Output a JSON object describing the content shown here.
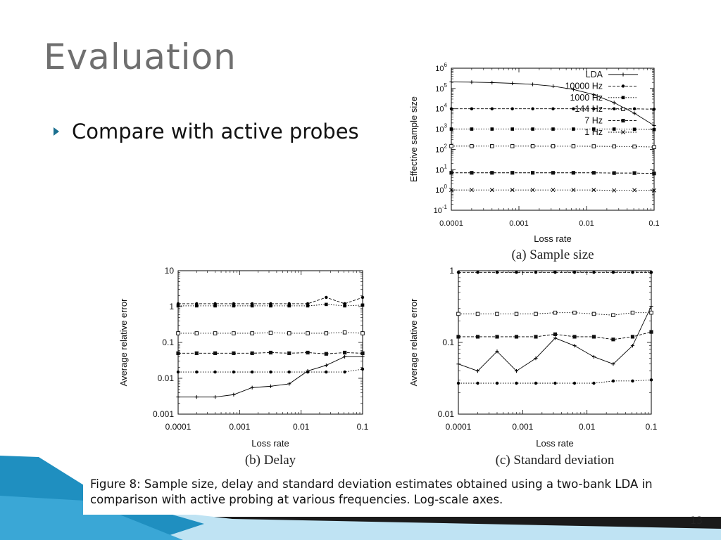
{
  "slide": {
    "title": "Evaluation",
    "bullet": "Compare with active probes",
    "caption": "Figure 8: Sample size, delay and standard deviation estimates obtained using a two-bank LDA in comparison with active probing at various frequencies. Log-scale axes.",
    "page_number": "13"
  },
  "colors": {
    "title": "#6f6f6f",
    "bullet_marker": "#1b6f8f",
    "decor_blue": "#1f8fc0",
    "decor_light": "#bfe3f3"
  },
  "chart_data": [
    {
      "id": "a",
      "type": "line",
      "subtitle": "(a) Sample size",
      "xlabel": "Loss rate",
      "ylabel": "Effective sample size",
      "xscale": "log",
      "yscale": "log",
      "xlim": [
        0.0001,
        0.1
      ],
      "ylim": [
        0.1,
        1000000
      ],
      "xticks": [
        "0.0001",
        "0.001",
        "0.01",
        "0.1"
      ],
      "yticks": [
        {
          "base": "10",
          "exp": "6"
        },
        {
          "base": "10",
          "exp": "5"
        },
        {
          "base": "10",
          "exp": "4"
        },
        {
          "base": "10",
          "exp": "3"
        },
        {
          "base": "10",
          "exp": "2"
        },
        {
          "base": "10",
          "exp": "1"
        },
        {
          "base": "10",
          "exp": "0"
        },
        {
          "base": "10",
          "exp": "-1"
        }
      ],
      "legend_position": "top-right",
      "x": [
        0.0001,
        0.0002,
        0.0004,
        0.0008,
        0.0016,
        0.0032,
        0.0064,
        0.0128,
        0.0256,
        0.0512,
        0.1
      ],
      "series": [
        {
          "name": "LDA",
          "marker": "plus",
          "dash": "solid",
          "values": [
            210000,
            205000,
            195000,
            180000,
            160000,
            130000,
            90000,
            50000,
            20000,
            6000,
            1500
          ]
        },
        {
          "name": "10000 Hz",
          "marker": "dot",
          "dash": "dashed",
          "values": [
            10000,
            10000,
            10000,
            10000,
            10000,
            10000,
            10000,
            10000,
            10000,
            10000,
            9500
          ]
        },
        {
          "name": "1000 Hz",
          "marker": "square",
          "dash": "dotted",
          "values": [
            1000,
            1000,
            1000,
            1000,
            1000,
            1000,
            1000,
            1000,
            1000,
            980,
            950
          ]
        },
        {
          "name": "144 Hz",
          "marker": "open-square",
          "dash": "dotted",
          "values": [
            144,
            144,
            144,
            144,
            144,
            143,
            143,
            142,
            140,
            138,
            130
          ]
        },
        {
          "name": "7 Hz",
          "marker": "filled-square",
          "dash": "dashed",
          "values": [
            7,
            7,
            7,
            7,
            7,
            7,
            7,
            7,
            6.8,
            6.8,
            6.5
          ]
        },
        {
          "name": "1 Hz",
          "marker": "cross",
          "dash": "dotted",
          "values": [
            1,
            1,
            1,
            1,
            1,
            1,
            1,
            1,
            0.95,
            0.98,
            0.95
          ]
        }
      ]
    },
    {
      "id": "b",
      "type": "line",
      "subtitle": "(b) Delay",
      "xlabel": "Loss rate",
      "ylabel": "Average relative error",
      "xscale": "log",
      "yscale": "log",
      "xlim": [
        0.0001,
        0.1
      ],
      "ylim": [
        0.001,
        10
      ],
      "xticks": [
        "0.0001",
        "0.001",
        "0.01",
        "0.1"
      ],
      "yticks": [
        "10",
        "1",
        "0.1",
        "0.01",
        "0.001"
      ],
      "x": [
        0.0001,
        0.0002,
        0.0004,
        0.0008,
        0.0016,
        0.0032,
        0.0064,
        0.0128,
        0.0256,
        0.0512,
        0.1
      ],
      "series": [
        {
          "marker": "plus",
          "dash": "solid",
          "values": [
            0.003,
            0.003,
            0.003,
            0.0035,
            0.0055,
            0.006,
            0.007,
            0.016,
            0.023,
            0.04,
            0.04
          ]
        },
        {
          "marker": "dot",
          "dash": "dashed",
          "values": [
            1.2,
            1.2,
            1.2,
            1.2,
            1.2,
            1.2,
            1.2,
            1.2,
            1.8,
            1.2,
            1.8
          ]
        },
        {
          "marker": "square",
          "dash": "dotted",
          "values": [
            1.05,
            1.05,
            1.05,
            1.05,
            1.05,
            1.05,
            1.05,
            1.05,
            1.15,
            1.05,
            1.1
          ]
        },
        {
          "marker": "open-square",
          "dash": "dotted",
          "values": [
            0.18,
            0.18,
            0.18,
            0.18,
            0.18,
            0.185,
            0.18,
            0.18,
            0.18,
            0.19,
            0.18
          ]
        },
        {
          "marker": "filled-square",
          "dash": "dashed",
          "values": [
            0.05,
            0.05,
            0.05,
            0.05,
            0.05,
            0.052,
            0.05,
            0.052,
            0.048,
            0.052,
            0.05
          ]
        },
        {
          "marker": "dot",
          "dash": "dotted",
          "values": [
            0.015,
            0.015,
            0.015,
            0.015,
            0.015,
            0.015,
            0.015,
            0.015,
            0.015,
            0.015,
            0.018
          ]
        }
      ]
    },
    {
      "id": "c",
      "type": "line",
      "subtitle": "(c) Standard deviation",
      "xlabel": "Loss rate",
      "ylabel": "Average relative error",
      "xscale": "log",
      "yscale": "log",
      "xlim": [
        0.0001,
        0.1
      ],
      "ylim": [
        0.01,
        1
      ],
      "xticks": [
        "0.0001",
        "0.001",
        "0.01",
        "0.1"
      ],
      "yticks": [
        "1",
        "0.1",
        "0.01"
      ],
      "x": [
        0.0001,
        0.0002,
        0.0004,
        0.0008,
        0.0016,
        0.0032,
        0.0064,
        0.0128,
        0.0256,
        0.0512,
        0.1
      ],
      "series": [
        {
          "marker": "plus",
          "dash": "solid",
          "values": [
            0.05,
            0.04,
            0.075,
            0.04,
            0.06,
            0.115,
            0.09,
            0.063,
            0.05,
            0.09,
            0.32
          ]
        },
        {
          "marker": "dot",
          "dash": "dashed",
          "values": [
            0.95,
            0.95,
            0.95,
            0.95,
            0.95,
            0.95,
            0.95,
            0.95,
            0.95,
            0.95,
            0.95
          ]
        },
        {
          "marker": "open-square",
          "dash": "dotted",
          "values": [
            0.25,
            0.25,
            0.25,
            0.25,
            0.25,
            0.26,
            0.26,
            0.25,
            0.24,
            0.26,
            0.26
          ]
        },
        {
          "marker": "filled-square",
          "dash": "dashed",
          "values": [
            0.12,
            0.12,
            0.12,
            0.12,
            0.12,
            0.13,
            0.12,
            0.12,
            0.11,
            0.12,
            0.14
          ]
        },
        {
          "marker": "dot",
          "dash": "dotted",
          "values": [
            0.027,
            0.027,
            0.027,
            0.027,
            0.027,
            0.027,
            0.027,
            0.027,
            0.029,
            0.029,
            0.03
          ]
        }
      ]
    }
  ]
}
